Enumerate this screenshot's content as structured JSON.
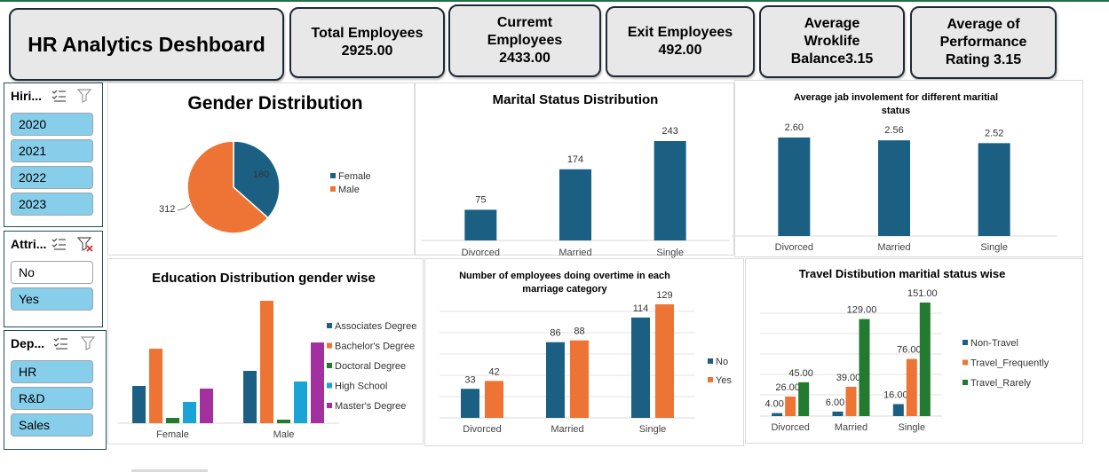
{
  "dashboard": {
    "title": "HR Analytics Deshboard"
  },
  "kpis": [
    {
      "text": "Total Employees\n2925.00"
    },
    {
      "text": "Curremt\nEmployees\n2433.00"
    },
    {
      "text": "Exit Employees\n492.00"
    },
    {
      "text": "Average\nWroklife\nBalance3.15"
    },
    {
      "text": "Average of\nPerformance\nRating 3.15"
    }
  ],
  "slicers": [
    {
      "title": "Hiri...",
      "items": [
        {
          "label": "2020",
          "selected": true
        },
        {
          "label": "2021",
          "selected": true
        },
        {
          "label": "2022",
          "selected": true
        },
        {
          "label": "2023",
          "selected": true
        }
      ]
    },
    {
      "title": "Attri...",
      "items": [
        {
          "label": "No",
          "selected": false
        },
        {
          "label": "Yes",
          "selected": true
        }
      ]
    },
    {
      "title": "Dep...",
      "items": [
        {
          "label": "HR",
          "selected": true
        },
        {
          "label": "R&D",
          "selected": true
        },
        {
          "label": "Sales",
          "selected": true
        }
      ]
    }
  ],
  "colors": {
    "blue": "#1b6083",
    "orange": "#ed7434",
    "green": "#217a2f",
    "cyan": "#1aa3d6",
    "purple": "#a2309e"
  },
  "icons": {
    "multiselect": "multi-select-icon",
    "clear": "clear-filter-icon"
  },
  "chart_data": [
    {
      "id": "gender",
      "type": "pie",
      "title": "Gender Distribution",
      "categories": [
        "Female",
        "Male"
      ],
      "values": [
        180,
        312
      ],
      "data_labels": [
        "180",
        "312"
      ],
      "legend": "right"
    },
    {
      "id": "marital",
      "type": "bar",
      "title": "Marital Status Distribution",
      "categories": [
        "Divorced",
        "Married",
        "Single"
      ],
      "values": [
        75,
        174,
        243
      ],
      "data_labels": [
        "75",
        "174",
        "243"
      ]
    },
    {
      "id": "jobinv",
      "type": "bar",
      "title": "Average jab involement for different maritial status",
      "categories": [
        "Divorced",
        "Married",
        "Single"
      ],
      "values": [
        2.6,
        2.56,
        2.52
      ],
      "data_labels": [
        "2.60",
        "2.56",
        "2.52"
      ]
    },
    {
      "id": "education",
      "type": "bar",
      "title": "Education Distribution gender wise",
      "categories": [
        "Female",
        "Male"
      ],
      "legend": "right",
      "series": [
        {
          "name": "Associates Degree",
          "values": [
            42,
            59
          ]
        },
        {
          "name": "Bachelor's Degree",
          "values": [
            84,
            138
          ]
        },
        {
          "name": "Doctoral Degree",
          "values": [
            6,
            4
          ]
        },
        {
          "name": "High School",
          "values": [
            24,
            47
          ]
        },
        {
          "name": "Master's Degree",
          "values": [
            39,
            91
          ]
        }
      ]
    },
    {
      "id": "overtime",
      "type": "bar",
      "title": "Number of employees doing overtime in each marriage category",
      "categories": [
        "Divorced",
        "Married",
        "Single"
      ],
      "legend": "right",
      "series": [
        {
          "name": "No",
          "values": [
            33,
            86,
            114
          ],
          "data_labels": [
            "33",
            "86",
            "114"
          ]
        },
        {
          "name": "Yes",
          "values": [
            42,
            88,
            129
          ],
          "data_labels": [
            "42",
            "88",
            "129"
          ]
        }
      ]
    },
    {
      "id": "travel",
      "type": "bar",
      "title": "Travel Distibution maritial status wise",
      "categories": [
        "Divorced",
        "Married",
        "Single"
      ],
      "legend": "right",
      "series": [
        {
          "name": "Non-Travel",
          "values": [
            4,
            6,
            16
          ],
          "data_labels": [
            "4.00",
            "6.00",
            "16.00"
          ]
        },
        {
          "name": "Travel_Frequently",
          "values": [
            26,
            39,
            76
          ],
          "data_labels": [
            "26.00",
            "39.00",
            "76.00"
          ]
        },
        {
          "name": "Travel_Rarely",
          "values": [
            45,
            129,
            151
          ],
          "data_labels": [
            "45.00",
            "129.00",
            "151.00"
          ]
        }
      ]
    }
  ]
}
